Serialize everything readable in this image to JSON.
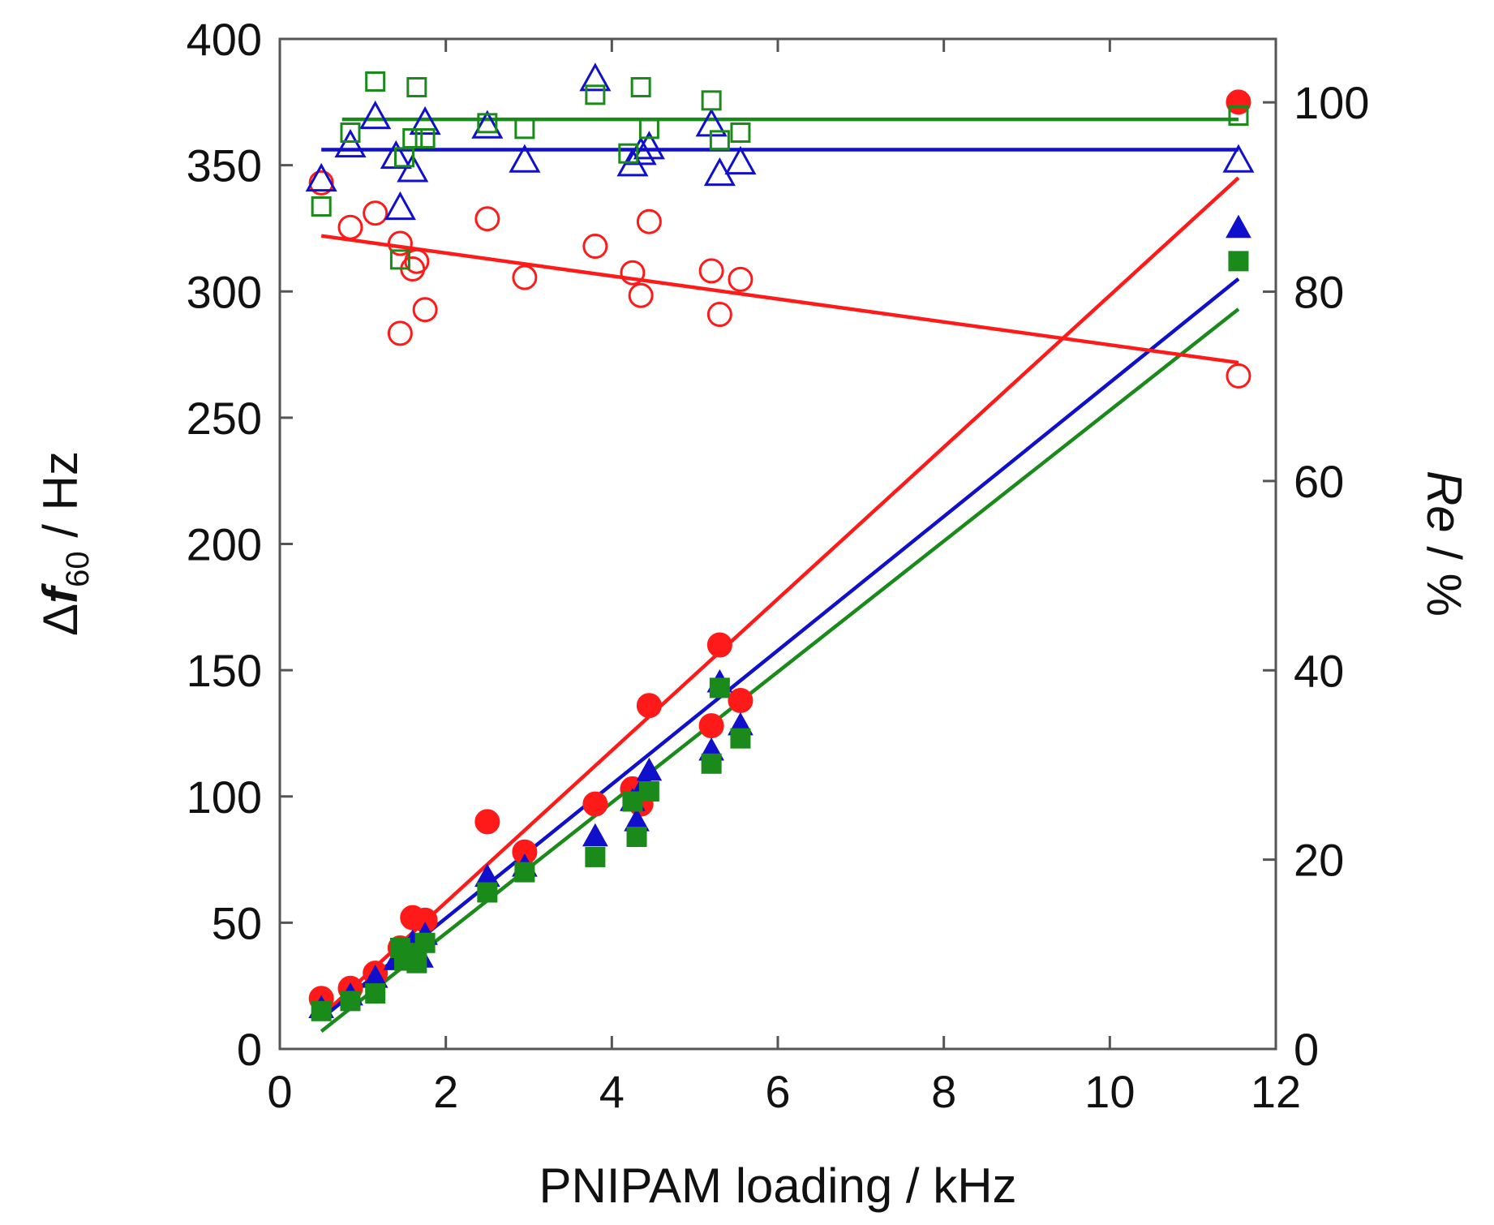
{
  "chart_data": {
    "type": "scatter",
    "xlabel": "PNIPAM loading / kHz",
    "ylabel_left": {
      "symbol": "Δ",
      "var": "f",
      "sub": "60",
      "unit": " / Hz"
    },
    "ylabel_right": {
      "var": "Re",
      "unit": " / %"
    },
    "xlim": [
      0,
      12
    ],
    "ylim_left": [
      0,
      400
    ],
    "ylim_right": [
      0,
      106.7
    ],
    "x_ticks": [
      "0",
      "2",
      "4",
      "6",
      "8",
      "10",
      "12"
    ],
    "y_left_ticks": [
      "0",
      "50",
      "100",
      "150",
      "200",
      "250",
      "300",
      "350",
      "400"
    ],
    "y_right_ticks": [
      "0",
      "20",
      "40",
      "60",
      "80",
      "100"
    ],
    "grid": false,
    "legend": "none",
    "colors": {
      "red": "#ff1a1a",
      "blue": "#1010cc",
      "green": "#1a8a1a",
      "axis": "#555555"
    },
    "series": [
      {
        "color": "red",
        "marker": "circle",
        "fill": true,
        "axis": "left",
        "points": [
          [
            0.5,
            20
          ],
          [
            0.85,
            24
          ],
          [
            1.15,
            30
          ],
          [
            1.45,
            40
          ],
          [
            1.6,
            52
          ],
          [
            1.75,
            51
          ],
          [
            2.5,
            90
          ],
          [
            2.95,
            78
          ],
          [
            3.8,
            97
          ],
          [
            4.25,
            103
          ],
          [
            4.35,
            97
          ],
          [
            4.45,
            136
          ],
          [
            5.2,
            128
          ],
          [
            5.3,
            160
          ],
          [
            5.55,
            138
          ],
          [
            11.55,
            375
          ]
        ],
        "fit": [
          [
            0.5,
            13
          ],
          [
            11.55,
            345
          ]
        ]
      },
      {
        "color": "blue",
        "marker": "triangle",
        "fill": true,
        "axis": "left",
        "points": [
          [
            0.5,
            16
          ],
          [
            0.85,
            21
          ],
          [
            1.15,
            28
          ],
          [
            1.4,
            35
          ],
          [
            1.5,
            38
          ],
          [
            1.6,
            42
          ],
          [
            1.7,
            36
          ],
          [
            1.75,
            45
          ],
          [
            2.5,
            68
          ],
          [
            2.95,
            72
          ],
          [
            3.8,
            84
          ],
          [
            4.25,
            98
          ],
          [
            4.3,
            90
          ],
          [
            4.4,
            105
          ],
          [
            4.45,
            110
          ],
          [
            5.2,
            118
          ],
          [
            5.3,
            145
          ],
          [
            5.55,
            128
          ],
          [
            11.55,
            325
          ]
        ],
        "fit": [
          [
            0.5,
            12
          ],
          [
            11.55,
            305
          ]
        ]
      },
      {
        "color": "green",
        "marker": "square",
        "fill": true,
        "axis": "left",
        "points": [
          [
            0.5,
            15
          ],
          [
            0.85,
            19
          ],
          [
            1.15,
            22
          ],
          [
            1.45,
            40
          ],
          [
            1.5,
            35
          ],
          [
            1.6,
            38
          ],
          [
            1.65,
            34
          ],
          [
            1.75,
            42
          ],
          [
            2.5,
            62
          ],
          [
            2.95,
            70
          ],
          [
            3.8,
            76
          ],
          [
            4.25,
            98
          ],
          [
            4.3,
            84
          ],
          [
            4.45,
            102
          ],
          [
            5.2,
            113
          ],
          [
            5.3,
            143
          ],
          [
            5.55,
            123
          ],
          [
            11.55,
            312
          ]
        ],
        "fit": [
          [
            0.5,
            7
          ],
          [
            11.55,
            293
          ]
        ]
      },
      {
        "color": "red",
        "marker": "circle",
        "fill": false,
        "axis": "right",
        "points": [
          [
            0.5,
            91.5
          ],
          [
            0.85,
            86.8
          ],
          [
            1.15,
            88.3
          ],
          [
            1.45,
            75.6
          ],
          [
            1.45,
            85.1
          ],
          [
            1.6,
            82.4
          ],
          [
            1.65,
            83.2
          ],
          [
            1.75,
            78.1
          ],
          [
            2.5,
            87.7
          ],
          [
            2.95,
            81.5
          ],
          [
            3.8,
            84.8
          ],
          [
            4.25,
            82.0
          ],
          [
            4.35,
            79.6
          ],
          [
            4.45,
            87.4
          ],
          [
            5.2,
            82.2
          ],
          [
            5.3,
            77.6
          ],
          [
            5.55,
            81.3
          ],
          [
            11.55,
            71.1
          ]
        ],
        "fit": [
          [
            0.5,
            85.9
          ],
          [
            11.55,
            72.5
          ]
        ]
      },
      {
        "color": "blue",
        "marker": "triangle",
        "fill": false,
        "axis": "right",
        "points": [
          [
            0.5,
            91.8
          ],
          [
            0.85,
            95.4
          ],
          [
            1.15,
            98.4
          ],
          [
            1.4,
            94.2
          ],
          [
            1.45,
            88.8
          ],
          [
            1.6,
            92.8
          ],
          [
            1.75,
            97.8
          ],
          [
            2.5,
            97.4
          ],
          [
            2.95,
            93.8
          ],
          [
            3.8,
            102.4
          ],
          [
            4.25,
            93.4
          ],
          [
            4.35,
            94.6
          ],
          [
            4.45,
            95.2
          ],
          [
            5.2,
            97.6
          ],
          [
            5.3,
            92.4
          ],
          [
            5.55,
            93.6
          ],
          [
            11.55,
            93.8
          ]
        ],
        "fit": [
          [
            0.5,
            95.0
          ],
          [
            11.55,
            95.0
          ]
        ]
      },
      {
        "color": "green",
        "marker": "square",
        "fill": false,
        "axis": "right",
        "points": [
          [
            0.5,
            89.0
          ],
          [
            0.85,
            96.8
          ],
          [
            1.15,
            102.2
          ],
          [
            1.45,
            83.4
          ],
          [
            1.5,
            94.2
          ],
          [
            1.6,
            96.2
          ],
          [
            1.65,
            101.6
          ],
          [
            1.75,
            96.2
          ],
          [
            2.5,
            97.8
          ],
          [
            2.95,
            97.2
          ],
          [
            3.8,
            100.8
          ],
          [
            4.2,
            94.6
          ],
          [
            4.35,
            101.6
          ],
          [
            4.45,
            97.2
          ],
          [
            5.2,
            100.2
          ],
          [
            5.3,
            96.0
          ],
          [
            5.55,
            96.8
          ],
          [
            11.55,
            98.6
          ]
        ],
        "fit": [
          [
            0.75,
            98.2
          ],
          [
            11.55,
            98.2
          ]
        ]
      }
    ]
  }
}
